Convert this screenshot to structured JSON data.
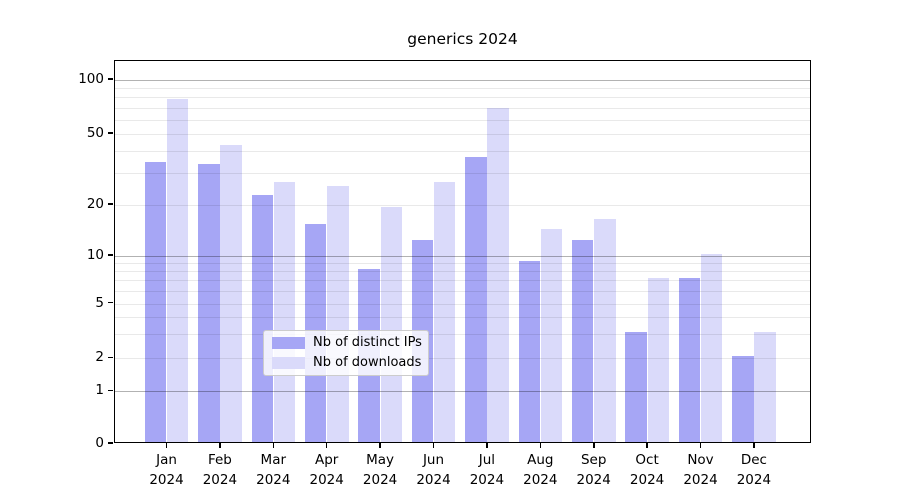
{
  "chart_data": {
    "type": "bar",
    "title": "generics 2024",
    "categories": [
      "Jan 2024",
      "Feb 2024",
      "Mar 2024",
      "Apr 2024",
      "May 2024",
      "Jun 2024",
      "Jul 2024",
      "Aug 2024",
      "Sep 2024",
      "Oct 2024",
      "Nov 2024",
      "Dec 2024"
    ],
    "series": [
      {
        "name": "Nb of distinct IPs",
        "color": "#a6a6f5",
        "values": [
          34,
          33,
          22,
          15,
          8,
          12,
          36,
          9,
          12,
          3,
          7,
          2
        ]
      },
      {
        "name": "Nb of downloads",
        "color": "#dadafa",
        "values": [
          76,
          42,
          26,
          25,
          19,
          26,
          68,
          14,
          16,
          7,
          10,
          3
        ]
      }
    ],
    "xlabel": "",
    "ylabel": "",
    "yscale": "symlog (log above 1, linear 0-1)",
    "ylim": [
      0,
      126
    ],
    "ytick_labels": [
      "100",
      "50",
      "20",
      "10",
      "5",
      "2",
      "1",
      "0"
    ],
    "ytick_values": [
      100,
      50,
      20,
      10,
      5,
      2,
      1,
      0
    ],
    "minor_gridline_values": [
      2,
      3,
      4,
      5,
      6,
      7,
      8,
      9,
      20,
      30,
      40,
      50,
      60,
      70,
      80,
      90
    ],
    "major_gridline_values": [
      1,
      10,
      100
    ],
    "grid": true,
    "legend_position": "lower center"
  },
  "colors": {
    "background": "#ffffff",
    "axis": "#000000",
    "bar_distinct_ips": "#a6a6f5",
    "bar_downloads": "#dadafa",
    "legend_border": "#cccccc"
  }
}
